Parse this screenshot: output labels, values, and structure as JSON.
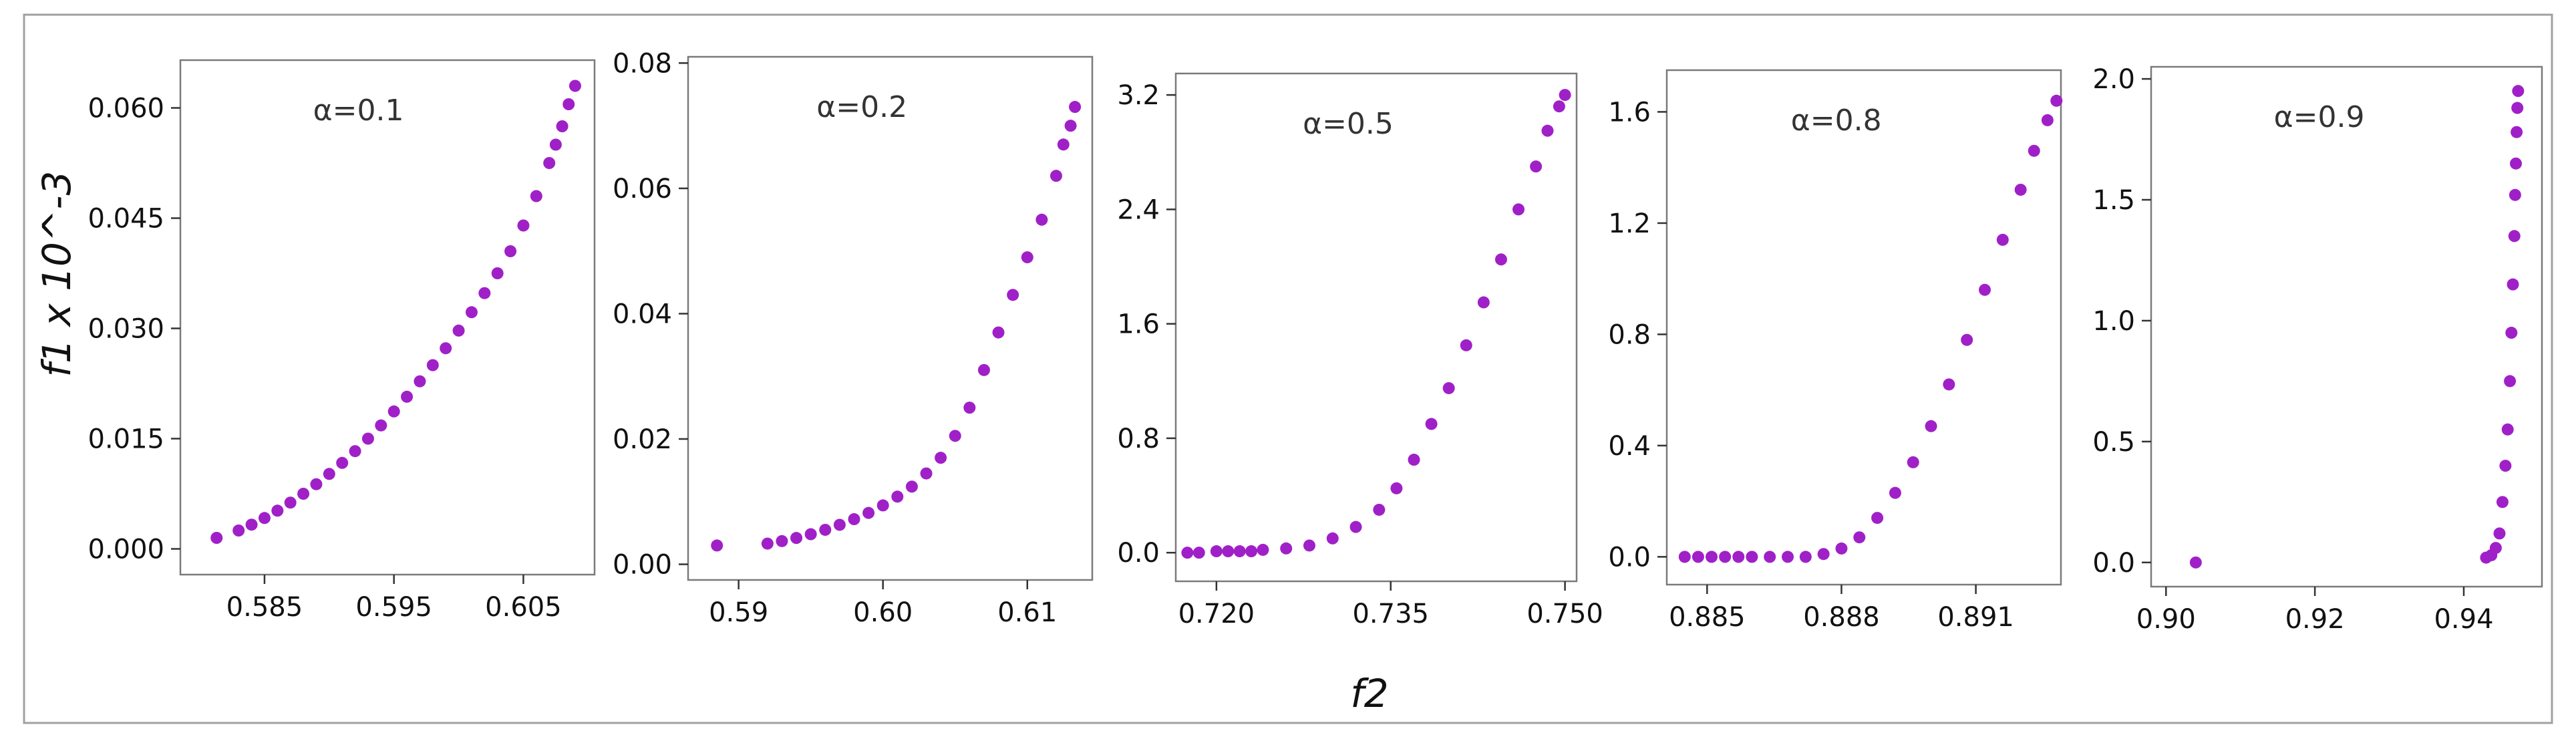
{
  "figure": {
    "ylabel": "f1 x 10^-3",
    "xlabel": "f2"
  },
  "chart_data": [
    {
      "type": "scatter",
      "title": "α=0.1",
      "xlim": [
        0.5785,
        0.6105
      ],
      "ylim": [
        -0.0035,
        0.0665
      ],
      "xticks": [
        0.585,
        0.595,
        0.605
      ],
      "xtick_labels": [
        "0.585",
        "0.595",
        "0.605"
      ],
      "yticks": [
        0.0,
        0.015,
        0.03,
        0.045,
        0.06
      ],
      "ytick_labels": [
        "0.000",
        "0.015",
        "0.030",
        "0.045",
        "0.060"
      ],
      "color": "#a020c8",
      "series": [
        {
          "x": [
            0.5813,
            0.583,
            0.584,
            0.585,
            0.586,
            0.587,
            0.588,
            0.589,
            0.59,
            0.591,
            0.592,
            0.593,
            0.594,
            0.595,
            0.596,
            0.597,
            0.598,
            0.599,
            0.6,
            0.601,
            0.602,
            0.603,
            0.604,
            0.605,
            0.606,
            0.607,
            0.6075,
            0.608,
            0.6085,
            0.609
          ],
          "y": [
            0.0015,
            0.0025,
            0.0033,
            0.0042,
            0.0052,
            0.0063,
            0.0075,
            0.0088,
            0.0102,
            0.0117,
            0.0133,
            0.015,
            0.0168,
            0.0187,
            0.0207,
            0.0228,
            0.025,
            0.0273,
            0.0297,
            0.0322,
            0.0348,
            0.0375,
            0.0405,
            0.044,
            0.048,
            0.0525,
            0.055,
            0.0575,
            0.0605,
            0.063
          ]
        }
      ]
    },
    {
      "type": "scatter",
      "title": "α=0.2",
      "xlim": [
        0.5865,
        0.6145
      ],
      "ylim": [
        -0.0025,
        0.081
      ],
      "xticks": [
        0.59,
        0.6,
        0.61
      ],
      "xtick_labels": [
        "0.59",
        "0.60",
        "0.61"
      ],
      "yticks": [
        0.0,
        0.02,
        0.04,
        0.06,
        0.08
      ],
      "ytick_labels": [
        "0.00",
        "0.02",
        "0.04",
        "0.06",
        "0.08"
      ],
      "color": "#a020c8",
      "series": [
        {
          "x": [
            0.5885,
            0.592,
            0.593,
            0.594,
            0.595,
            0.596,
            0.597,
            0.598,
            0.599,
            0.6,
            0.601,
            0.602,
            0.603,
            0.604,
            0.605,
            0.606,
            0.607,
            0.608,
            0.609,
            0.61,
            0.611,
            0.612,
            0.6125,
            0.613,
            0.6133
          ],
          "y": [
            0.003,
            0.0033,
            0.0037,
            0.0042,
            0.0048,
            0.0055,
            0.0063,
            0.0072,
            0.0082,
            0.0094,
            0.0108,
            0.0124,
            0.0145,
            0.017,
            0.0205,
            0.025,
            0.031,
            0.037,
            0.043,
            0.049,
            0.055,
            0.062,
            0.067,
            0.07,
            0.073
          ]
        }
      ]
    },
    {
      "type": "scatter",
      "title": "α=0.5",
      "xlim": [
        0.7165,
        0.751
      ],
      "ylim": [
        -0.2,
        3.35
      ],
      "xticks": [
        0.72,
        0.735,
        0.75
      ],
      "xtick_labels": [
        "0.720",
        "0.735",
        "0.750"
      ],
      "yticks": [
        0.0,
        0.8,
        1.6,
        2.4,
        3.2
      ],
      "ytick_labels": [
        "0.0",
        "0.8",
        "1.6",
        "2.4",
        "3.2"
      ],
      "color": "#a020c8",
      "series": [
        {
          "x": [
            0.7175,
            0.7185,
            0.72,
            0.721,
            0.722,
            0.723,
            0.724,
            0.726,
            0.728,
            0.73,
            0.732,
            0.734,
            0.7355,
            0.737,
            0.7385,
            0.74,
            0.7415,
            0.743,
            0.7445,
            0.746,
            0.7475,
            0.7485,
            0.7495,
            0.75
          ],
          "y": [
            0.0,
            0.0,
            0.01,
            0.01,
            0.01,
            0.01,
            0.02,
            0.03,
            0.05,
            0.1,
            0.18,
            0.3,
            0.45,
            0.65,
            0.9,
            1.15,
            1.45,
            1.75,
            2.05,
            2.4,
            2.7,
            2.95,
            3.12,
            3.2
          ]
        }
      ]
    },
    {
      "type": "scatter",
      "title": "α=0.8",
      "xlim": [
        0.8841,
        0.8929
      ],
      "ylim": [
        -0.1,
        1.75
      ],
      "xticks": [
        0.885,
        0.888,
        0.891
      ],
      "xtick_labels": [
        "0.885",
        "0.888",
        "0.891"
      ],
      "yticks": [
        0.0,
        0.4,
        0.8,
        1.2,
        1.6
      ],
      "ytick_labels": [
        "0.0",
        "0.4",
        "0.8",
        "1.2",
        "1.6"
      ],
      "color": "#a020c8",
      "series": [
        {
          "x": [
            0.8845,
            0.8848,
            0.8851,
            0.8854,
            0.8857,
            0.886,
            0.8864,
            0.8868,
            0.8872,
            0.8876,
            0.888,
            0.8884,
            0.8888,
            0.8892,
            0.8896,
            0.89,
            0.8904,
            0.8908,
            0.8912,
            0.8916,
            0.892,
            0.8923,
            0.8926,
            0.8928
          ],
          "y": [
            0.0,
            0.0,
            0.0,
            0.0,
            0.0,
            0.0,
            0.0,
            0.0,
            0.0,
            0.01,
            0.03,
            0.07,
            0.14,
            0.23,
            0.34,
            0.47,
            0.62,
            0.78,
            0.96,
            1.14,
            1.32,
            1.46,
            1.57,
            1.64
          ]
        }
      ]
    },
    {
      "type": "scatter",
      "title": "α=0.9",
      "xlim": [
        0.898,
        0.9505
      ],
      "ylim": [
        -0.1,
        2.05
      ],
      "xticks": [
        0.9,
        0.92,
        0.94
      ],
      "xtick_labels": [
        "0.90",
        "0.92",
        "0.94"
      ],
      "yticks": [
        0.0,
        0.5,
        1.0,
        1.5,
        2.0
      ],
      "ytick_labels": [
        "0.0",
        "0.5",
        "1.0",
        "1.5",
        "2.0"
      ],
      "color": "#a020c8",
      "series": [
        {
          "x": [
            0.904,
            0.943,
            0.9437,
            0.9443,
            0.9448,
            0.9452,
            0.9456,
            0.9459,
            0.9462,
            0.9464,
            0.9466,
            0.9468,
            0.9469,
            0.947,
            0.9471,
            0.9472,
            0.9473
          ],
          "y": [
            0.0,
            0.02,
            0.03,
            0.06,
            0.12,
            0.25,
            0.4,
            0.55,
            0.75,
            0.95,
            1.15,
            1.35,
            1.52,
            1.65,
            1.78,
            1.88,
            1.95
          ]
        }
      ]
    }
  ]
}
